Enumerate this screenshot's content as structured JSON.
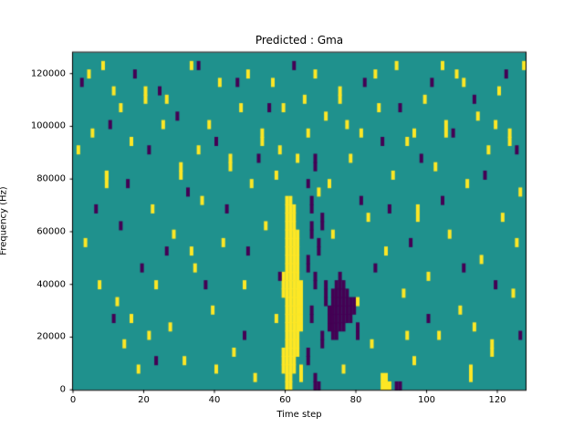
{
  "chart_data": {
    "type": "heatmap",
    "title": "Predicted : Gma",
    "xlabel": "Time step",
    "ylabel": "Frequency (Hz)",
    "x_range": [
      0,
      128
    ],
    "y_range": [
      0,
      128000
    ],
    "x_ticks": [
      0,
      20,
      40,
      60,
      80,
      100,
      120
    ],
    "y_ticks": [
      0,
      20000,
      40000,
      60000,
      80000,
      100000,
      120000
    ],
    "grid_cols": 128,
    "grid_rows": 40,
    "legend": null,
    "grid": false,
    "colors": {
      "figure_bg": "#ffffff",
      "background": "#1f918d",
      "high": "#fde725",
      "low": "#440154",
      "axes": "#000000"
    },
    "cells": {
      "yellow_runs": [
        [
          59,
          2,
          4
        ],
        [
          59,
          11,
          13
        ],
        [
          60,
          0,
          22
        ],
        [
          61,
          0,
          22
        ],
        [
          62,
          2,
          21
        ],
        [
          63,
          4,
          18
        ],
        [
          64,
          1,
          2
        ],
        [
          64,
          7,
          12
        ],
        [
          87,
          0,
          1
        ],
        [
          88,
          0,
          1
        ],
        [
          89,
          0,
          0
        ],
        [
          20,
          34,
          35
        ],
        [
          44,
          26,
          27
        ],
        [
          97,
          20,
          21
        ],
        [
          112,
          1,
          2
        ],
        [
          30,
          25,
          26
        ],
        [
          118,
          4,
          5
        ],
        [
          75,
          34,
          35
        ],
        [
          9,
          24,
          25
        ],
        [
          53,
          29,
          30
        ],
        [
          105,
          30,
          31
        ],
        [
          123,
          29,
          30
        ]
      ],
      "purple_runs": [
        [
          70,
          5,
          6
        ],
        [
          71,
          10,
          12
        ],
        [
          72,
          7,
          9
        ],
        [
          73,
          6,
          11
        ],
        [
          74,
          6,
          12
        ],
        [
          75,
          7,
          13
        ],
        [
          76,
          7,
          12
        ],
        [
          77,
          8,
          11
        ],
        [
          78,
          8,
          10
        ],
        [
          79,
          9,
          10
        ],
        [
          80,
          6,
          7
        ],
        [
          66,
          3,
          4
        ],
        [
          66,
          14,
          15
        ],
        [
          67,
          8,
          9
        ],
        [
          67,
          18,
          19
        ],
        [
          68,
          0,
          1
        ],
        [
          68,
          12,
          13
        ],
        [
          69,
          16,
          17
        ],
        [
          70,
          19,
          20
        ],
        [
          67,
          21,
          22
        ],
        [
          68,
          26,
          27
        ],
        [
          91,
          0,
          0
        ],
        [
          92,
          0,
          0
        ],
        [
          69,
          0,
          0
        ]
      ],
      "yellow_points": [
        [
          3,
          17
        ],
        [
          4,
          37
        ],
        [
          5,
          30
        ],
        [
          8,
          38
        ],
        [
          9,
          25
        ],
        [
          12,
          10
        ],
        [
          13,
          33
        ],
        [
          14,
          5
        ],
        [
          16,
          29
        ],
        [
          18,
          2
        ],
        [
          22,
          21
        ],
        [
          23,
          12
        ],
        [
          25,
          31
        ],
        [
          27,
          7
        ],
        [
          28,
          18
        ],
        [
          31,
          3
        ],
        [
          33,
          38
        ],
        [
          34,
          14
        ],
        [
          36,
          22
        ],
        [
          38,
          31
        ],
        [
          39,
          9
        ],
        [
          41,
          36
        ],
        [
          42,
          17
        ],
        [
          45,
          4
        ],
        [
          47,
          33
        ],
        [
          48,
          12
        ],
        [
          50,
          24
        ],
        [
          51,
          1
        ],
        [
          54,
          19
        ],
        [
          56,
          36
        ],
        [
          57,
          8
        ],
        [
          58,
          28
        ],
        [
          65,
          34
        ],
        [
          66,
          30
        ],
        [
          68,
          37
        ],
        [
          69,
          23
        ],
        [
          71,
          32
        ],
        [
          73,
          18
        ],
        [
          76,
          2
        ],
        [
          78,
          27
        ],
        [
          80,
          10
        ],
        [
          81,
          30
        ],
        [
          83,
          20
        ],
        [
          84,
          5
        ],
        [
          86,
          33
        ],
        [
          88,
          16
        ],
        [
          90,
          25
        ],
        [
          91,
          38
        ],
        [
          93,
          11
        ],
        [
          94,
          29
        ],
        [
          96,
          3
        ],
        [
          99,
          34
        ],
        [
          100,
          13
        ],
        [
          102,
          26
        ],
        [
          103,
          6
        ],
        [
          106,
          18
        ],
        [
          108,
          37
        ],
        [
          109,
          9
        ],
        [
          111,
          24
        ],
        [
          114,
          32
        ],
        [
          115,
          15
        ],
        [
          117,
          28
        ],
        [
          120,
          35
        ],
        [
          121,
          20
        ],
        [
          124,
          11
        ],
        [
          126,
          23
        ],
        [
          127,
          38
        ],
        [
          7,
          12
        ],
        [
          35,
          28
        ],
        [
          59,
          33
        ],
        [
          85,
          37
        ],
        [
          110,
          36
        ],
        [
          16,
          8
        ],
        [
          26,
          34
        ],
        [
          40,
          2
        ],
        [
          63,
          27
        ],
        [
          94,
          6
        ],
        [
          119,
          31
        ],
        [
          1,
          28
        ],
        [
          11,
          35
        ],
        [
          49,
          37
        ],
        [
          72,
          24
        ],
        [
          104,
          38
        ],
        [
          21,
          6
        ],
        [
          33,
          16
        ],
        [
          57,
          25
        ],
        [
          77,
          31
        ],
        [
          96,
          30
        ],
        [
          113,
          7
        ],
        [
          125,
          17
        ]
      ],
      "purple_points": [
        [
          2,
          36
        ],
        [
          6,
          21
        ],
        [
          10,
          31
        ],
        [
          11,
          8
        ],
        [
          15,
          24
        ],
        [
          17,
          37
        ],
        [
          19,
          14
        ],
        [
          21,
          28
        ],
        [
          24,
          35
        ],
        [
          26,
          16
        ],
        [
          29,
          32
        ],
        [
          32,
          23
        ],
        [
          35,
          38
        ],
        [
          37,
          12
        ],
        [
          40,
          29
        ],
        [
          43,
          21
        ],
        [
          46,
          36
        ],
        [
          49,
          16
        ],
        [
          52,
          27
        ],
        [
          55,
          33
        ],
        [
          58,
          13
        ],
        [
          62,
          38
        ],
        [
          81,
          22
        ],
        [
          82,
          36
        ],
        [
          85,
          14
        ],
        [
          87,
          29
        ],
        [
          89,
          21
        ],
        [
          92,
          33
        ],
        [
          95,
          17
        ],
        [
          98,
          27
        ],
        [
          101,
          36
        ],
        [
          104,
          22
        ],
        [
          107,
          30
        ],
        [
          110,
          14
        ],
        [
          113,
          34
        ],
        [
          116,
          25
        ],
        [
          119,
          12
        ],
        [
          122,
          37
        ],
        [
          125,
          28
        ],
        [
          126,
          6
        ],
        [
          66,
          24
        ],
        [
          100,
          8
        ],
        [
          48,
          6
        ],
        [
          23,
          3
        ],
        [
          13,
          19
        ]
      ]
    }
  }
}
